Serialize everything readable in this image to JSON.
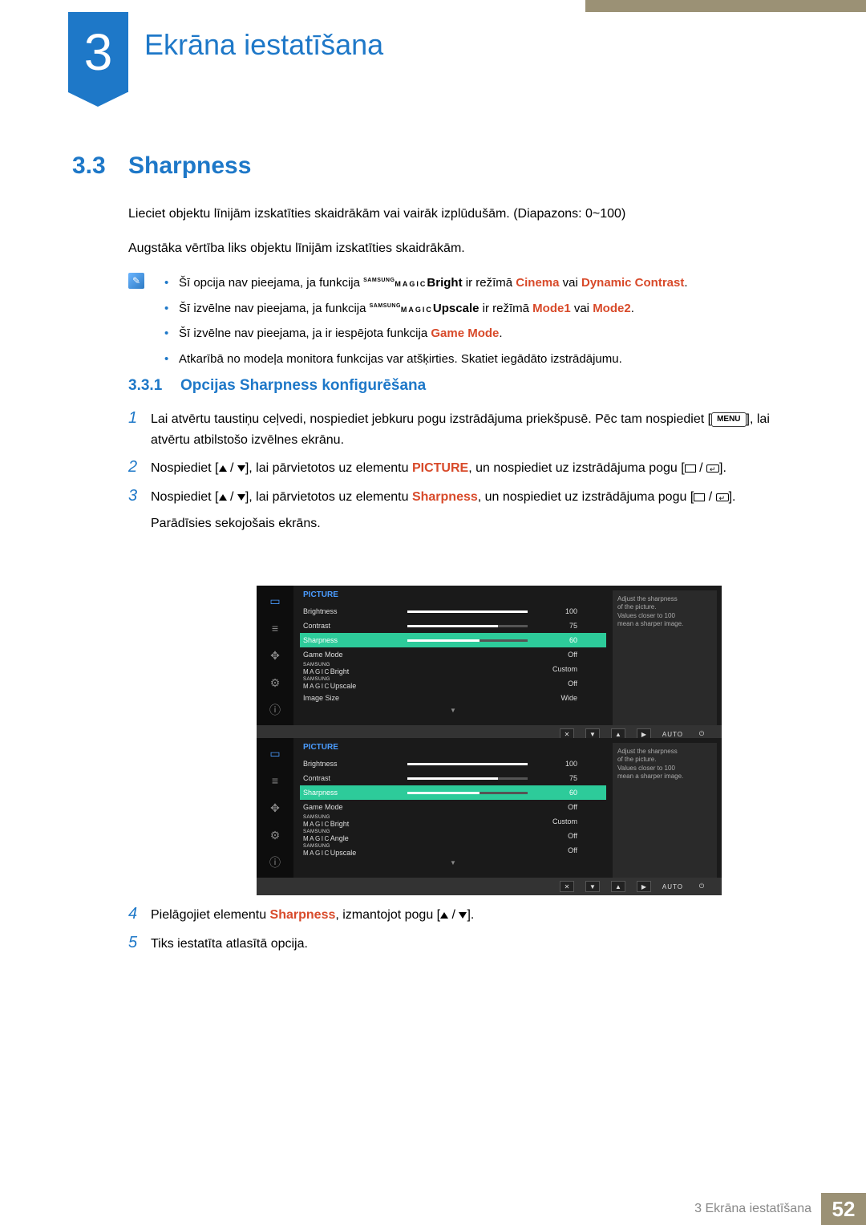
{
  "chapter": {
    "number": "3",
    "title": "Ekrāna iestatīšana"
  },
  "section": {
    "number": "3.3",
    "title": "Sharpness"
  },
  "intro": {
    "p1": "Lieciet objektu līnijām izskatīties skaidrākām vai vairāk izplūdušām. (Diapazons: 0~100)",
    "p2": "Augstāka vērtība liks objektu līnijām izskatīties skaidrākām."
  },
  "notes": {
    "b1_a": "Šī opcija nav pieejama, ja funkcija ",
    "b1_b": "Bright",
    "b1_c": " ir režīmā ",
    "b1_d": "Cinema",
    "b1_e": " vai ",
    "b1_f": "Dynamic Contrast",
    "b2_a": "Šī izvēlne nav pieejama, ja funkcija ",
    "b2_b": "Upscale",
    "b2_c": " ir režīmā ",
    "b2_d": "Mode1",
    "b2_e": " vai ",
    "b2_f": "Mode2",
    "b3_a": "Šī izvēlne nav pieejama, ja ir iespējota funkcija ",
    "b3_b": "Game Mode",
    "b4": "Atkarībā no modeļa monitora funkcijas var atšķirties. Skatiet iegādāto izstrādājumu."
  },
  "subsection": {
    "number": "3.3.1",
    "title": "Opcijas Sharpness konfigurēšana"
  },
  "steps": {
    "s1a": "Lai atvērtu taustiņu ceļvedi, nospiediet jebkuru pogu izstrādājuma priekšpusē. Pēc tam nospiediet [",
    "s1b": "MENU",
    "s1c": "], lai atvērtu atbilstošo izvēlnes ekrānu.",
    "s2a": "Nospiediet [",
    "s2b": "], lai pārvietotos uz elementu ",
    "s2c": "PICTURE",
    "s2d": ", un nospiediet uz izstrādājuma pogu [",
    "s2e": "].",
    "s3a": "Nospiediet [",
    "s3b": "], lai pārvietotos uz elementu ",
    "s3c": "Sharpness",
    "s3d": ", un nospiediet uz izstrādājuma pogu [",
    "s3e": "].",
    "s3f": "Parādīsies sekojošais ekrāns.",
    "s4a": "Pielāgojiet elementu ",
    "s4b": "Sharpness",
    "s4c": ", izmantojot pogu [",
    "s4d": "].",
    "s5": "Tiks iestatīta atlasītā opcija."
  },
  "osd": {
    "title": "PICTURE",
    "tip_l1": "Adjust the sharpness",
    "tip_l2": "of the picture.",
    "tip_l3": "Values closer to 100",
    "tip_l4": "mean a sharper image.",
    "rows1": [
      {
        "label": "Brightness",
        "bar": 100,
        "val": "100"
      },
      {
        "label": "Contrast",
        "bar": 75,
        "val": "75"
      },
      {
        "label": "Sharpness",
        "bar": 60,
        "val": "60",
        "sel": true
      },
      {
        "label": "Game Mode",
        "val": "Off"
      },
      {
        "label": "MAGIC Bright",
        "val": "Custom",
        "sm": true
      },
      {
        "label": "MAGIC Upscale",
        "val": "Off",
        "sm": true
      },
      {
        "label": "Image Size",
        "val": "Wide"
      }
    ],
    "rows2": [
      {
        "label": "Brightness",
        "bar": 100,
        "val": "100"
      },
      {
        "label": "Contrast",
        "bar": 75,
        "val": "75"
      },
      {
        "label": "Sharpness",
        "bar": 60,
        "val": "60",
        "sel": true
      },
      {
        "label": "Game Mode",
        "val": "Off"
      },
      {
        "label": "MAGIC Bright",
        "val": "Custom",
        "sm": true
      },
      {
        "label": "MAGIC Angle",
        "val": "Off",
        "sm": true
      },
      {
        "label": "MAGIC Upscale",
        "val": "Off",
        "sm": true
      }
    ],
    "footer_auto": "AUTO"
  },
  "footer": {
    "text": "3 Ekrāna iestatīšana",
    "page": "52"
  },
  "colors": {
    "accent": "#1e78c8",
    "khaki": "#9b9175",
    "red": "#d84a2a",
    "osd_sel": "#2dcb9a",
    "osd_title": "#4a9cff"
  }
}
